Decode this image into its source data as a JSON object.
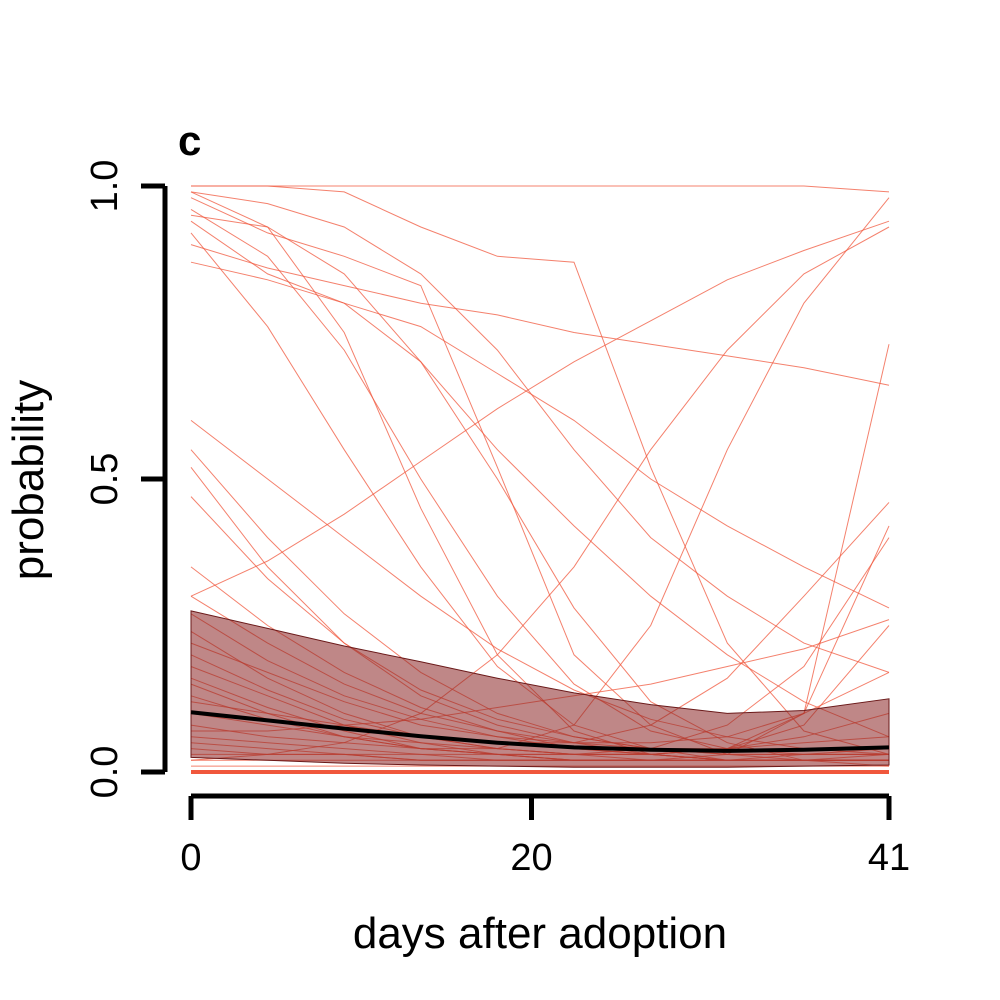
{
  "chart_data": {
    "type": "line",
    "panel_label": "c",
    "xlabel": "days after adoption",
    "ylabel": "probability",
    "xlim": [
      0,
      41
    ],
    "ylim": [
      0,
      1
    ],
    "x_ticks": [
      0,
      20,
      41
    ],
    "x_tick_labels": [
      "0",
      "20",
      "41"
    ],
    "y_ticks": [
      0,
      0.5,
      1
    ],
    "y_tick_labels": [
      "0.0",
      "0.5",
      "1.0"
    ],
    "grid": false,
    "legend": "none",
    "colors": {
      "individual_lines": "#f0573c",
      "band_fill": "#8b2525",
      "mean_line": "#000000"
    },
    "x": [
      0,
      4.5,
      9,
      13.5,
      18,
      22.5,
      27,
      31.5,
      36,
      41
    ],
    "mean": {
      "values": [
        0.102,
        0.088,
        0.074,
        0.061,
        0.05,
        0.042,
        0.038,
        0.036,
        0.038,
        0.042
      ]
    },
    "band": {
      "upper": [
        0.275,
        0.245,
        0.215,
        0.188,
        0.16,
        0.135,
        0.115,
        0.1,
        0.105,
        0.125
      ],
      "lower": [
        0.025,
        0.02,
        0.015,
        0.012,
        0.01,
        0.008,
        0.008,
        0.008,
        0.01,
        0.012
      ]
    },
    "individual_series": [
      [
        1.0,
        1.0,
        1.0,
        1.0,
        1.0,
        1.0,
        1.0,
        1.0,
        1.0,
        0.99
      ],
      [
        1.0,
        1.0,
        0.99,
        0.93,
        0.88,
        0.87,
        0.52,
        0.22,
        0.07,
        0.03
      ],
      [
        0.99,
        0.93,
        0.75,
        0.45,
        0.2,
        0.07,
        0.03,
        0.02,
        0.02,
        0.02
      ],
      [
        0.98,
        0.92,
        0.88,
        0.83,
        0.52,
        0.2,
        0.08,
        0.03,
        0.02,
        0.02
      ],
      [
        0.96,
        0.88,
        0.72,
        0.5,
        0.3,
        0.15,
        0.07,
        0.04,
        0.03,
        0.03
      ],
      [
        0.94,
        0.85,
        0.8,
        0.76,
        0.68,
        0.6,
        0.5,
        0.42,
        0.35,
        0.28
      ],
      [
        0.92,
        0.76,
        0.55,
        0.35,
        0.18,
        0.08,
        0.04,
        0.02,
        0.02,
        0.02
      ],
      [
        0.9,
        0.86,
        0.83,
        0.8,
        0.78,
        0.75,
        0.73,
        0.71,
        0.69,
        0.66
      ],
      [
        0.87,
        0.84,
        0.8,
        0.7,
        0.55,
        0.42,
        0.3,
        0.2,
        0.12,
        0.06
      ],
      [
        0.6,
        0.5,
        0.4,
        0.3,
        0.21,
        0.14,
        0.09,
        0.06,
        0.04,
        0.03
      ],
      [
        0.55,
        0.4,
        0.27,
        0.17,
        0.1,
        0.06,
        0.04,
        0.03,
        0.03,
        0.03
      ],
      [
        0.52,
        0.35,
        0.22,
        0.13,
        0.08,
        0.05,
        0.03,
        0.02,
        0.02,
        0.02
      ],
      [
        0.47,
        0.33,
        0.22,
        0.14,
        0.09,
        0.06,
        0.04,
        0.03,
        0.03,
        0.03
      ],
      [
        0.35,
        0.25,
        0.17,
        0.11,
        0.07,
        0.04,
        0.03,
        0.02,
        0.02,
        0.02
      ],
      [
        0.3,
        0.36,
        0.44,
        0.53,
        0.62,
        0.7,
        0.77,
        0.84,
        0.89,
        0.94
      ],
      [
        0.3,
        0.22,
        0.15,
        0.1,
        0.07,
        0.05,
        0.04,
        0.04,
        0.05,
        0.06
      ],
      [
        0.27,
        0.19,
        0.13,
        0.09,
        0.06,
        0.04,
        0.03,
        0.02,
        0.02,
        0.02
      ],
      [
        0.24,
        0.16,
        0.1,
        0.06,
        0.04,
        0.03,
        0.02,
        0.02,
        0.02,
        0.02
      ],
      [
        0.22,
        0.17,
        0.12,
        0.08,
        0.06,
        0.05,
        0.05,
        0.06,
        0.1,
        0.17
      ],
      [
        0.2,
        0.14,
        0.09,
        0.06,
        0.04,
        0.03,
        0.03,
        0.04,
        0.08,
        0.25
      ],
      [
        0.18,
        0.13,
        0.08,
        0.05,
        0.03,
        0.02,
        0.02,
        0.02,
        0.03,
        0.04
      ],
      [
        0.16,
        0.11,
        0.07,
        0.04,
        0.03,
        0.02,
        0.02,
        0.02,
        0.02,
        0.03
      ],
      [
        0.15,
        0.1,
        0.06,
        0.04,
        0.04,
        0.08,
        0.25,
        0.55,
        0.8,
        0.98
      ],
      [
        0.13,
        0.09,
        0.06,
        0.04,
        0.03,
        0.02,
        0.02,
        0.02,
        0.02,
        0.02
      ],
      [
        0.12,
        0.1,
        0.08,
        0.06,
        0.05,
        0.05,
        0.08,
        0.16,
        0.3,
        0.46
      ],
      [
        0.1,
        0.08,
        0.06,
        0.05,
        0.04,
        0.03,
        0.03,
        0.04,
        0.1,
        0.42
      ],
      [
        0.08,
        0.06,
        0.05,
        0.04,
        0.03,
        0.03,
        0.03,
        0.04,
        0.06,
        0.1
      ],
      [
        0.07,
        0.07,
        0.08,
        0.09,
        0.11,
        0.13,
        0.15,
        0.18,
        0.21,
        0.26
      ],
      [
        0.06,
        0.05,
        0.04,
        0.03,
        0.02,
        0.02,
        0.02,
        0.03,
        0.1,
        0.73
      ],
      [
        0.05,
        0.04,
        0.03,
        0.03,
        0.03,
        0.03,
        0.04,
        0.08,
        0.18,
        0.4
      ],
      [
        0.04,
        0.03,
        0.03,
        0.02,
        0.02,
        0.02,
        0.02,
        0.02,
        0.02,
        0.02
      ],
      [
        0.03,
        0.03,
        0.03,
        0.02,
        0.02,
        0.02,
        0.02,
        0.02,
        0.02,
        0.02
      ],
      [
        0.02,
        0.02,
        0.02,
        0.02,
        0.02,
        0.02,
        0.02,
        0.02,
        0.02,
        0.02
      ],
      [
        0.01,
        0.01,
        0.01,
        0.01,
        0.01,
        0.01,
        0.01,
        0.01,
        0.01,
        0.01
      ],
      [
        0.95,
        0.93,
        0.85,
        0.7,
        0.5,
        0.28,
        0.12,
        0.05,
        0.02,
        0.01
      ],
      [
        0.02,
        0.03,
        0.05,
        0.1,
        0.2,
        0.35,
        0.55,
        0.72,
        0.85,
        0.93
      ],
      [
        0.99,
        0.97,
        0.93,
        0.85,
        0.72,
        0.55,
        0.4,
        0.3,
        0.22,
        0.17
      ]
    ]
  }
}
